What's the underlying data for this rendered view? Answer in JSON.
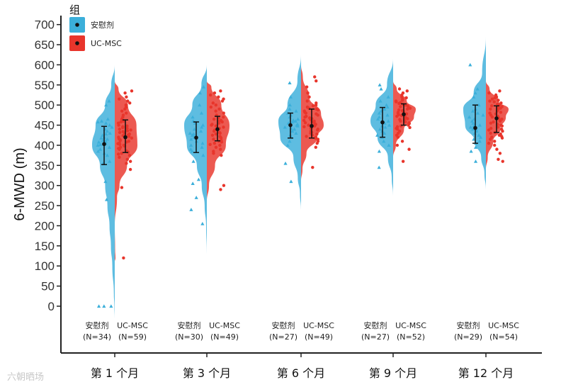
{
  "chart_data": {
    "type": "split-violin",
    "ylabel": "6-MWD (m)",
    "ylim": [
      -130,
      725
    ],
    "yticks": [
      0,
      50,
      100,
      150,
      200,
      250,
      300,
      350,
      400,
      450,
      500,
      550,
      600,
      650,
      700
    ],
    "legend": {
      "title": "组",
      "placement": "top-left",
      "entries": [
        {
          "name": "安慰剂",
          "color": "#3BAFDA"
        },
        {
          "name": "UC-MSC",
          "color": "#E8352B"
        }
      ]
    },
    "watermark": "六朝晒场",
    "timepoints": [
      {
        "label": "第 1 个月",
        "groups": [
          {
            "name": "安慰剂",
            "n_label": "(N=34)",
            "mean": 403,
            "ci": [
              352,
              447
            ],
            "violin": [
              [
                -30,
                0
              ],
              [
                0,
                2
              ],
              [
                30,
                5
              ],
              [
                100,
                14
              ],
              [
                150,
                22
              ],
              [
                200,
                30
              ],
              [
                250,
                42
              ],
              [
                300,
                55
              ],
              [
                350,
                85
              ],
              [
                400,
                130
              ],
              [
                450,
                110
              ],
              [
                500,
                55
              ],
              [
                550,
                20
              ],
              [
                600,
                0
              ]
            ],
            "points": [
              0,
              0,
              0,
              265,
              310,
              355,
              360,
              375,
              380,
              385,
              390,
              395,
              400,
              402,
              405,
              408,
              410,
              412,
              415,
              418,
              420,
              425,
              428,
              430,
              435,
              440,
              445,
              450,
              455,
              458,
              460,
              465,
              500,
              510
            ]
          },
          {
            "name": "UC-MSC",
            "n_label": "(N=59)",
            "mean": 420,
            "ci": [
              382,
              463
            ],
            "violin": [
              [
                110,
                0
              ],
              [
                120,
                4
              ],
              [
                140,
                2
              ],
              [
                200,
                0
              ],
              [
                270,
                12
              ],
              [
                300,
                25
              ],
              [
                350,
                65
              ],
              [
                400,
                120
              ],
              [
                450,
                115
              ],
              [
                500,
                70
              ],
              [
                540,
                20
              ],
              [
                560,
                0
              ]
            ],
            "points": [
              120,
              295,
              340,
              355,
              360,
              365,
              370,
              375,
              378,
              380,
              383,
              386,
              390,
              392,
              395,
              398,
              400,
              402,
              404,
              406,
              408,
              410,
              412,
              414,
              416,
              418,
              420,
              422,
              424,
              426,
              428,
              430,
              432,
              434,
              436,
              438,
              440,
              442,
              444,
              446,
              448,
              450,
              455,
              458,
              460,
              465,
              470,
              475,
              480,
              485,
              490,
              495,
              500,
              505,
              510,
              515,
              520,
              530,
              535
            ]
          }
        ]
      },
      {
        "label": "第 3 个月",
        "groups": [
          {
            "name": "安慰剂",
            "n_label": "(N=30)",
            "mean": 419,
            "ci": [
              382,
              458
            ],
            "violin": [
              [
                130,
                0
              ],
              [
                200,
                4
              ],
              [
                250,
                12
              ],
              [
                300,
                28
              ],
              [
                350,
                55
              ],
              [
                400,
                110
              ],
              [
                450,
                125
              ],
              [
                500,
                80
              ],
              [
                550,
                30
              ],
              [
                600,
                0
              ]
            ],
            "points": [
              205,
              240,
              270,
              305,
              315,
              360,
              375,
              385,
              390,
              395,
              400,
              405,
              410,
              415,
              418,
              420,
              425,
              428,
              430,
              435,
              440,
              445,
              450,
              455,
              460,
              470,
              480,
              500,
              530,
              545
            ]
          },
          {
            "name": "UC-MSC",
            "n_label": "(N=49)",
            "mean": 440,
            "ci": [
              411,
              472
            ],
            "violin": [
              [
                260,
                0
              ],
              [
                300,
                12
              ],
              [
                350,
                45
              ],
              [
                400,
                105
              ],
              [
                450,
                125
              ],
              [
                500,
                80
              ],
              [
                545,
                25
              ],
              [
                560,
                0
              ]
            ],
            "points": [
              290,
              300,
              375,
              380,
              385,
              390,
              395,
              400,
              402,
              405,
              408,
              410,
              412,
              415,
              418,
              420,
              422,
              425,
              428,
              430,
              432,
              435,
              438,
              440,
              442,
              445,
              448,
              450,
              452,
              455,
              458,
              460,
              462,
              465,
              468,
              470,
              475,
              480,
              485,
              490,
              495,
              500,
              505,
              510,
              515,
              520,
              525,
              530,
              535
            ]
          }
        ]
      },
      {
        "label": "第 6 个月",
        "groups": [
          {
            "name": "安慰剂",
            "n_label": "(N=27)",
            "mean": 450,
            "ci": [
              418,
              480
            ],
            "violin": [
              [
                240,
                0
              ],
              [
                280,
                6
              ],
              [
                320,
                18
              ],
              [
                370,
                42
              ],
              [
                420,
                115
              ],
              [
                460,
                125
              ],
              [
                500,
                75
              ],
              [
                560,
                20
              ],
              [
                625,
                0
              ]
            ],
            "points": [
              310,
              355,
              400,
              410,
              420,
              425,
              430,
              435,
              440,
              442,
              445,
              448,
              450,
              452,
              455,
              458,
              460,
              462,
              465,
              470,
              475,
              480,
              485,
              490,
              500,
              520,
              555
            ]
          },
          {
            "name": "UC-MSC",
            "n_label": "(N=49)",
            "mean": 448,
            "ci": [
              418,
              490
            ],
            "violin": [
              [
                310,
                0
              ],
              [
                340,
                8
              ],
              [
                380,
                30
              ],
              [
                420,
                90
              ],
              [
                450,
                125
              ],
              [
                480,
                110
              ],
              [
                520,
                45
              ],
              [
                570,
                10
              ],
              [
                600,
                0
              ]
            ],
            "points": [
              345,
              395,
              405,
              410,
              415,
              418,
              420,
              422,
              425,
              428,
              430,
              432,
              435,
              438,
              440,
              442,
              444,
              446,
              448,
              450,
              452,
              454,
              456,
              458,
              460,
              462,
              464,
              466,
              468,
              470,
              472,
              475,
              478,
              480,
              482,
              485,
              488,
              490,
              492,
              495,
              498,
              500,
              505,
              510,
              520,
              530,
              545,
              560,
              570
            ]
          }
        ]
      },
      {
        "label": "第 9 个月",
        "groups": [
          {
            "name": "安慰剂",
            "n_label": "(N=27)",
            "mean": 457,
            "ci": [
              420,
              494
            ],
            "violin": [
              [
                275,
                0
              ],
              [
                320,
                8
              ],
              [
                370,
                30
              ],
              [
                420,
                90
              ],
              [
                460,
                130
              ],
              [
                500,
                100
              ],
              [
                550,
                35
              ],
              [
                615,
                0
              ]
            ],
            "points": [
              345,
              385,
              400,
              410,
              420,
              425,
              430,
              435,
              440,
              445,
              448,
              450,
              455,
              458,
              460,
              465,
              470,
              475,
              480,
              485,
              490,
              495,
              500,
              510,
              520,
              540,
              550
            ]
          },
          {
            "name": "UC-MSC",
            "n_label": "(N=52)",
            "mean": 477,
            "ci": [
              450,
              503
            ],
            "violin": [
              [
                370,
                0
              ],
              [
                400,
                15
              ],
              [
                440,
                60
              ],
              [
                470,
                115
              ],
              [
                490,
                125
              ],
              [
                510,
                75
              ],
              [
                540,
                20
              ],
              [
                560,
                0
              ]
            ],
            "points": [
              360,
              390,
              400,
              410,
              420,
              425,
              430,
              435,
              440,
              442,
              444,
              446,
              448,
              450,
              452,
              454,
              456,
              458,
              460,
              462,
              464,
              466,
              468,
              470,
              472,
              474,
              476,
              478,
              480,
              482,
              484,
              486,
              488,
              490,
              492,
              494,
              496,
              498,
              500,
              502,
              504,
              506,
              508,
              510,
              512,
              515,
              518,
              520,
              525,
              530,
              535,
              540
            ]
          }
        ]
      },
      {
        "label": "第 12 个月",
        "groups": [
          {
            "name": "安慰剂",
            "n_label": "(N=29)",
            "mean": 443,
            "ci": [
              405,
              500
            ],
            "violin": [
              [
                290,
                0
              ],
              [
                330,
                8
              ],
              [
                370,
                25
              ],
              [
                410,
                60
              ],
              [
                450,
                110
              ],
              [
                490,
                120
              ],
              [
                530,
                65
              ],
              [
                580,
                20
              ],
              [
                670,
                0
              ]
            ],
            "points": [
              360,
              385,
              395,
              405,
              410,
              415,
              420,
              425,
              430,
              435,
              438,
              440,
              442,
              445,
              448,
              450,
              455,
              460,
              465,
              470,
              475,
              480,
              485,
              490,
              500,
              520,
              530,
              540,
              600
            ]
          },
          {
            "name": "UC-MSC",
            "n_label": "(N=54)",
            "mean": 467,
            "ci": [
              432,
              498
            ],
            "violin": [
              [
                340,
                0
              ],
              [
                370,
                10
              ],
              [
                410,
                40
              ],
              [
                440,
                80
              ],
              [
                470,
                110
              ],
              [
                490,
                125
              ],
              [
                510,
                70
              ],
              [
                540,
                20
              ],
              [
                560,
                0
              ]
            ],
            "points": [
              360,
              365,
              380,
              390,
              400,
              405,
              410,
              415,
              418,
              420,
              422,
              425,
              428,
              430,
              432,
              435,
              438,
              440,
              442,
              445,
              448,
              450,
              452,
              455,
              458,
              460,
              462,
              465,
              468,
              470,
              472,
              475,
              478,
              480,
              482,
              485,
              488,
              490,
              492,
              494,
              496,
              498,
              500,
              502,
              505,
              508,
              510,
              512,
              515,
              518,
              520,
              525,
              530,
              535
            ]
          }
        ]
      }
    ]
  }
}
